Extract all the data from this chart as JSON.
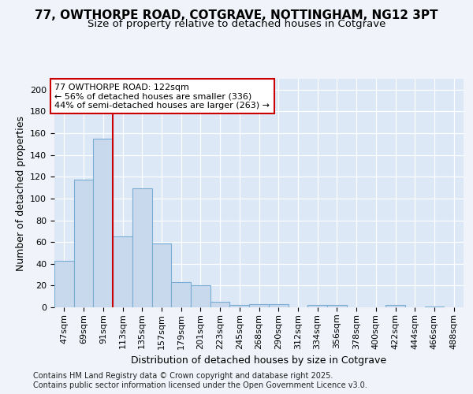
{
  "title_line1": "77, OWTHORPE ROAD, COTGRAVE, NOTTINGHAM, NG12 3PT",
  "title_line2": "Size of property relative to detached houses in Cotgrave",
  "xlabel": "Distribution of detached houses by size in Cotgrave",
  "ylabel": "Number of detached properties",
  "categories": [
    "47sqm",
    "69sqm",
    "91sqm",
    "113sqm",
    "135sqm",
    "157sqm",
    "179sqm",
    "201sqm",
    "223sqm",
    "245sqm",
    "268sqm",
    "290sqm",
    "312sqm",
    "334sqm",
    "356sqm",
    "378sqm",
    "400sqm",
    "422sqm",
    "444sqm",
    "466sqm",
    "488sqm"
  ],
  "values": [
    43,
    117,
    155,
    65,
    109,
    59,
    23,
    20,
    5,
    2,
    3,
    3,
    0,
    2,
    2,
    0,
    0,
    2,
    0,
    1,
    0
  ],
  "bar_color": "#c8d9ee",
  "bar_edge_color": "#7aadd4",
  "vline_color": "#cc0000",
  "vline_x": 2.5,
  "annotation_text": "77 OWTHORPE ROAD: 122sqm\n← 56% of detached houses are smaller (336)\n44% of semi-detached houses are larger (263) →",
  "annotation_box_facecolor": "#ffffff",
  "annotation_box_edgecolor": "#cc0000",
  "background_color": "#f0f4fa",
  "plot_bg_color": "#dce8f5",
  "grid_color": "#ffffff",
  "ylim": [
    0,
    210
  ],
  "yticks": [
    0,
    20,
    40,
    60,
    80,
    100,
    120,
    140,
    160,
    180,
    200
  ],
  "footer_line1": "Contains HM Land Registry data © Crown copyright and database right 2025.",
  "footer_line2": "Contains public sector information licensed under the Open Government Licence v3.0.",
  "title_fontsize": 11,
  "subtitle_fontsize": 9.5,
  "ylabel_fontsize": 9,
  "xlabel_fontsize": 9,
  "tick_fontsize": 8,
  "annotation_fontsize": 8,
  "footer_fontsize": 7
}
